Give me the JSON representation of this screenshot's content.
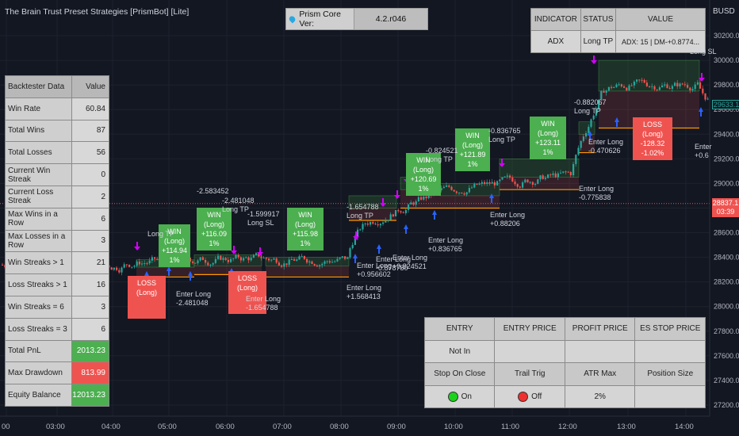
{
  "header": {
    "title": "The Brain Trust Preset Strategies [PrismBot] [Lite]",
    "currency": "BUSD"
  },
  "prism": {
    "label": "Prism Core Ver:",
    "version": "4.2.r046"
  },
  "indicator_table": {
    "headers": [
      "INDICATOR",
      "STATUS",
      "VALUE"
    ],
    "row": [
      "ADX",
      "Long TP",
      "ADX: 15 | DM-+0.8774..."
    ]
  },
  "backtester": {
    "headers": [
      "Backtester Data",
      "Value"
    ],
    "rows": [
      {
        "k": "Win Rate",
        "v": "60.84"
      },
      {
        "k": "Total Wins",
        "v": "87"
      },
      {
        "k": "Total Losses",
        "v": "56"
      },
      {
        "k": "Current Win Streak",
        "v": "0"
      },
      {
        "k": "Current Loss Streak",
        "v": "2"
      },
      {
        "k": "Max Wins in a Row",
        "v": "6"
      },
      {
        "k": "Max Losses in a Row",
        "v": "3"
      },
      {
        "k": "Win Streaks > 1",
        "v": "21"
      },
      {
        "k": "Loss Streaks > 1",
        "v": "16"
      },
      {
        "k": "Win Streaks = 6",
        "v": "3"
      },
      {
        "k": "Loss Streaks = 3",
        "v": "6"
      },
      {
        "k": "Total PnL",
        "v": "2013.23"
      },
      {
        "k": "Max Drawdown",
        "v": "813.99"
      },
      {
        "k": "Equity Balance",
        "v": "12013.23"
      }
    ]
  },
  "position_table": {
    "headers1": [
      "ENTRY",
      "ENTRY PRICE",
      "PROFIT PRICE",
      "ES STOP PRICE"
    ],
    "row1": [
      "Not In",
      "",
      "",
      ""
    ],
    "headers2": [
      "Stop On Close",
      "Trail Trig",
      "ATR Max",
      "Position Size"
    ],
    "row2": [
      "On",
      "Off",
      "2%",
      ""
    ]
  },
  "price_axis": {
    "ticks": [
      "30200.00",
      "30000.00",
      "29800.00",
      "29600.00",
      "29400.00",
      "29200.00",
      "29000.00",
      "28800.00",
      "28600.00",
      "28400.00",
      "28200.00",
      "28000.00",
      "27800.00",
      "27600.00",
      "27400.00",
      "27200.00"
    ],
    "current_price": "29633.1",
    "last_price": "28837.1",
    "countdown": "03:39"
  },
  "time_axis": {
    "ticks": [
      "00",
      "03:00",
      "04:00",
      "05:00",
      "06:00",
      "07:00",
      "08:00",
      "09:00",
      "10:00",
      "11:00",
      "12:00",
      "13:00",
      "14:00"
    ]
  },
  "trades": {
    "wins": [
      {
        "title": "WIN (Long)",
        "pnl": "+116.09",
        "pct": "1%"
      },
      {
        "title": "WIN (Long)",
        "pnl": "+115.98",
        "pct": "1%"
      },
      {
        "title": "WIN (Long)",
        "pnl": "+120.69",
        "pct": "1%"
      },
      {
        "title": "WIN (Long)",
        "pnl": "+121.89",
        "pct": "1%"
      },
      {
        "title": "WIN (Long)",
        "pnl": "+123.11",
        "pct": "1%"
      },
      {
        "title": "WIN (Long)",
        "pnl": "+114.94",
        "pct": "1%"
      }
    ],
    "losses": [
      {
        "title": "LOSS (Long)",
        "pnl": "",
        "pct": ""
      },
      {
        "title": "LOSS (Long)",
        "pnl": "",
        "pct": ""
      },
      {
        "title": "LOSS (Long)",
        "pnl": "-128.32",
        "pct": "-1.02%"
      }
    ],
    "annotations": [
      "-2.583452",
      "-2.481048\nLong TP",
      "-1.599917\nLong SL",
      "-1.654788\nLong TP",
      "-0.836765\nLong TP",
      "-0.882067\nLong TP",
      "-0.824521\nLong TP",
      "Enter Long\n-2.481048",
      "Enter Long\n+0.956602",
      "Enter Long\n+1.568413",
      "Enter Long\n+0.824521",
      "Enter Long\n+0.836765",
      "Enter Long\n+0.88206",
      "Enter Long\n-0.775838",
      "Enter Long\n-0.470626",
      "Enter Long\n-1.654788",
      "Enter Long\n-0.878780",
      "Long TP",
      "Long SL",
      "Enter\n+0.6"
    ]
  }
}
